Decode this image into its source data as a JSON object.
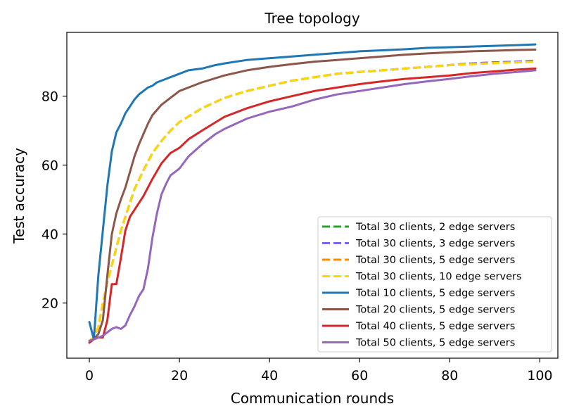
{
  "chart_data": {
    "type": "line",
    "title": "Tree topology",
    "xlabel": "Communication rounds",
    "ylabel": "Test accuracy",
    "xlim": [
      -5,
      104
    ],
    "ylim": [
      4,
      98.5
    ],
    "xticks": [
      0,
      20,
      40,
      60,
      80,
      100
    ],
    "yticks": [
      20,
      40,
      60,
      80
    ],
    "grid": false,
    "legend_position": "lower-right",
    "series": [
      {
        "name": "Total 30 clients, 2 edge servers",
        "color": "#2ca02c",
        "dashed": true,
        "x": [
          0,
          1,
          2,
          3,
          4,
          5,
          6,
          7,
          8,
          9,
          10,
          12,
          14,
          16,
          18,
          20,
          25,
          30,
          35,
          40,
          45,
          50,
          55,
          60,
          65,
          70,
          75,
          80,
          85,
          90,
          95,
          99
        ],
        "y": [
          9,
          10,
          13,
          20,
          26,
          31,
          36,
          41,
          45,
          49,
          53,
          58.5,
          63.5,
          67,
          70,
          72.5,
          76.5,
          79.5,
          81.5,
          83,
          84.5,
          85.5,
          86.5,
          87,
          87.5,
          88,
          88.5,
          89,
          89.5,
          89.8,
          90,
          90.3
        ]
      },
      {
        "name": "Total 30 clients, 3 edge servers",
        "color": "#7b68ee",
        "dashed": true,
        "x": [
          0,
          1,
          2,
          3,
          4,
          5,
          6,
          7,
          8,
          9,
          10,
          12,
          14,
          16,
          18,
          20,
          25,
          30,
          35,
          40,
          45,
          50,
          55,
          60,
          65,
          70,
          75,
          80,
          85,
          90,
          95,
          99
        ],
        "y": [
          9,
          10,
          13,
          20,
          26,
          31,
          36,
          41,
          45,
          49,
          53,
          58.5,
          63.5,
          67,
          70,
          72.5,
          76.5,
          79.5,
          81.5,
          83,
          84.5,
          85.5,
          86.5,
          87,
          87.5,
          88,
          88.5,
          89,
          89.5,
          89.8,
          90,
          90.3
        ]
      },
      {
        "name": "Total 30 clients, 5 edge servers",
        "color": "#ff8c00",
        "dashed": true,
        "x": [
          0,
          1,
          2,
          3,
          4,
          5,
          6,
          7,
          8,
          9,
          10,
          12,
          14,
          16,
          18,
          20,
          25,
          30,
          35,
          40,
          45,
          50,
          55,
          60,
          65,
          70,
          75,
          80,
          85,
          90,
          95,
          99
        ],
        "y": [
          9,
          10,
          13,
          20,
          26,
          31,
          36,
          41,
          45,
          49,
          53,
          58.5,
          63.5,
          67,
          70,
          72.5,
          76.5,
          79.5,
          81.5,
          83,
          84.5,
          85.5,
          86.5,
          87,
          87.5,
          88,
          88.5,
          89,
          89.3,
          89.6,
          89.8,
          90
        ]
      },
      {
        "name": "Total 30 clients, 10 edge servers",
        "color": "#ffd700",
        "dashed": true,
        "x": [
          0,
          1,
          2,
          3,
          4,
          5,
          6,
          7,
          8,
          9,
          10,
          12,
          14,
          16,
          18,
          20,
          25,
          30,
          35,
          40,
          45,
          50,
          55,
          60,
          65,
          70,
          75,
          80,
          85,
          90,
          95,
          99
        ],
        "y": [
          9,
          10,
          13,
          20,
          26,
          31,
          36,
          41,
          45,
          49,
          53,
          58.5,
          63.5,
          67,
          70,
          72.5,
          76.5,
          79.5,
          81.5,
          83,
          84.5,
          85.5,
          86.5,
          87,
          87.5,
          88,
          88.5,
          89,
          89.3,
          89.6,
          89.8,
          90
        ]
      },
      {
        "name": "Total 10 clients, 5 edge servers",
        "color": "#1f77b4",
        "dashed": false,
        "x": [
          0,
          1,
          2,
          3,
          4,
          5,
          6,
          7,
          8,
          9,
          10,
          11,
          12,
          13,
          14,
          15,
          16,
          18,
          20,
          22,
          25,
          28,
          30,
          35,
          40,
          45,
          50,
          55,
          60,
          65,
          70,
          75,
          80,
          85,
          90,
          95,
          99
        ],
        "y": [
          14.5,
          9.5,
          28,
          41,
          54,
          64,
          69.5,
          72,
          75,
          77,
          79,
          80.5,
          81.5,
          82.5,
          83,
          84,
          84.5,
          85.5,
          86.5,
          87.5,
          88,
          89,
          89.5,
          90.5,
          91,
          91.5,
          92,
          92.5,
          93,
          93.3,
          93.6,
          94,
          94.2,
          94.4,
          94.6,
          94.8,
          95
        ]
      },
      {
        "name": "Total 20 clients, 5 edge servers",
        "color": "#8c564b",
        "dashed": false,
        "x": [
          0,
          1,
          2,
          3,
          4,
          5,
          6,
          7,
          8,
          9,
          10,
          11,
          12,
          13,
          14,
          16,
          18,
          20,
          22,
          25,
          30,
          35,
          40,
          45,
          50,
          55,
          60,
          65,
          70,
          75,
          80,
          85,
          90,
          95,
          99
        ],
        "y": [
          9,
          9.5,
          11,
          15,
          28,
          40,
          46,
          50,
          53.5,
          58,
          62.5,
          66,
          69,
          72,
          74.5,
          77.5,
          79.5,
          81.5,
          82.5,
          84,
          86,
          87.5,
          88.5,
          89.3,
          90,
          90.5,
          91,
          91.5,
          92,
          92.4,
          92.7,
          93,
          93.2,
          93.4,
          93.5
        ]
      },
      {
        "name": "Total 40 clients, 5 edge servers",
        "color": "#d62728",
        "dashed": false,
        "x": [
          0,
          1,
          2,
          3,
          4,
          5,
          6,
          7,
          8,
          9,
          10,
          12,
          14,
          16,
          18,
          20,
          22,
          25,
          30,
          35,
          40,
          45,
          50,
          55,
          60,
          65,
          70,
          75,
          80,
          85,
          90,
          95,
          99
        ],
        "y": [
          8.5,
          9.5,
          10,
          10,
          15,
          25.5,
          25.5,
          33,
          41,
          45,
          47,
          51,
          56,
          60.5,
          63.5,
          65,
          67.5,
          70,
          74,
          76.5,
          78.5,
          80,
          81.5,
          82.5,
          83.5,
          84.3,
          85,
          85.5,
          86,
          86.7,
          87.2,
          87.7,
          88
        ]
      },
      {
        "name": "Total 50 clients, 5 edge servers",
        "color": "#9467bd",
        "dashed": false,
        "x": [
          0,
          1,
          2,
          3,
          4,
          5,
          6,
          7,
          8,
          9,
          10,
          11,
          12,
          13,
          14,
          15,
          16,
          17,
          18,
          20,
          22,
          25,
          28,
          30,
          35,
          40,
          45,
          50,
          55,
          60,
          65,
          70,
          75,
          80,
          85,
          90,
          95,
          99
        ],
        "y": [
          9,
          9.5,
          10,
          10.5,
          11.5,
          12.5,
          13,
          12.5,
          13.5,
          16.5,
          19,
          22,
          24,
          30,
          39,
          46,
          51.5,
          54.5,
          57,
          59,
          62.5,
          66,
          69,
          70.5,
          73.5,
          75.5,
          77,
          79,
          80.5,
          81.5,
          82.5,
          83.5,
          84.3,
          85,
          85.8,
          86.5,
          87,
          87.5
        ]
      }
    ]
  }
}
